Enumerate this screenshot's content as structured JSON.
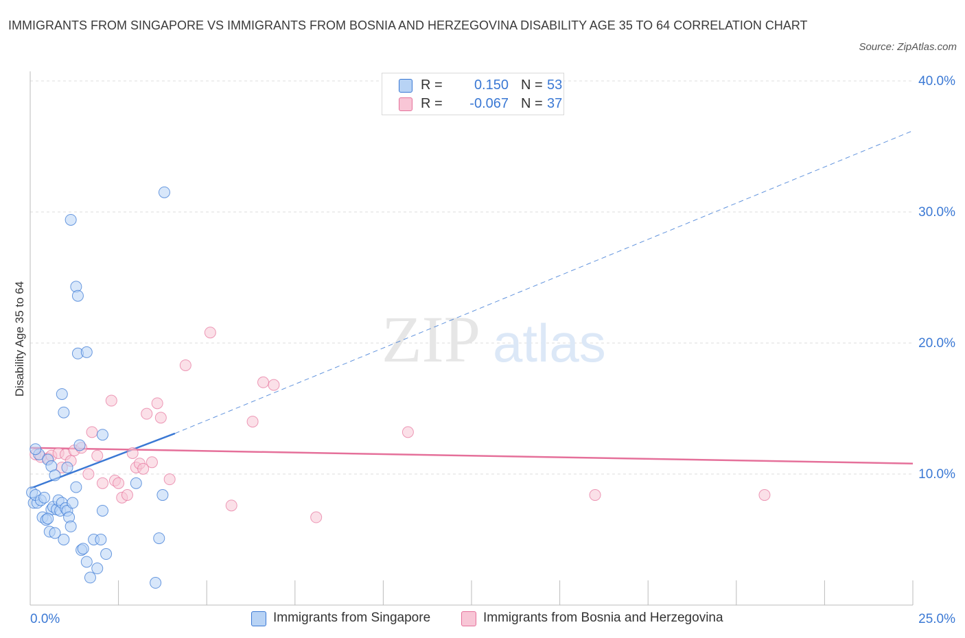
{
  "title": "IMMIGRANTS FROM SINGAPORE VS IMMIGRANTS FROM BOSNIA AND HERZEGOVINA DISABILITY AGE 35 TO 64 CORRELATION CHART",
  "source": "Source: ZipAtlas.com",
  "colors": {
    "blue": "#3a78d4",
    "blue_fill": "#b8d3f5",
    "pink": "#e5709a",
    "pink_fill": "#f8c6d6",
    "grid": "#dddddd",
    "axis_text": "#3a78d4"
  },
  "legend": {
    "r_label": "R =",
    "n_label": "N =",
    "rows": [
      {
        "r": "0.150",
        "n": "53"
      },
      {
        "r": "-0.067",
        "n": "37"
      }
    ]
  },
  "watermark": {
    "zip": "ZIP",
    "atlas": "atlas"
  },
  "chart_data": {
    "type": "scatter",
    "title": "IMMIGRANTS FROM SINGAPORE VS IMMIGRANTS FROM BOSNIA AND HERZEGOVINA DISABILITY AGE 35 TO 64 CORRELATION CHART",
    "xlabel": "",
    "ylabel": "Disability Age 35 to 64",
    "xlim": [
      0,
      25
    ],
    "ylim": [
      0,
      40
    ],
    "x_tick_labels": [
      "0.0%",
      "25.0%"
    ],
    "y_ticks": [
      10,
      20,
      30,
      40
    ],
    "y_tick_labels": [
      "10.0%",
      "20.0%",
      "30.0%",
      "40.0%"
    ],
    "grid": true,
    "series": [
      {
        "name": "Immigrants from Singapore",
        "r": 0.15,
        "n": 53,
        "trend": {
          "x0": 0,
          "y0": 8.9,
          "x1": 4.1,
          "y1": 13.1,
          "extended_to": {
            "x": 25,
            "y": 36.2
          }
        },
        "points": [
          [
            0.05,
            8.6
          ],
          [
            0.1,
            7.8
          ],
          [
            0.2,
            7.8
          ],
          [
            0.15,
            8.4
          ],
          [
            0.3,
            8.0
          ],
          [
            0.35,
            6.7
          ],
          [
            0.45,
            6.5
          ],
          [
            0.55,
            5.6
          ],
          [
            0.6,
            7.3
          ],
          [
            0.65,
            7.5
          ],
          [
            0.7,
            5.5
          ],
          [
            0.75,
            7.3
          ],
          [
            0.8,
            8.0
          ],
          [
            0.85,
            7.2
          ],
          [
            0.9,
            7.8
          ],
          [
            0.95,
            5.0
          ],
          [
            1.0,
            7.4
          ],
          [
            1.05,
            7.2
          ],
          [
            1.1,
            6.7
          ],
          [
            1.15,
            6.0
          ],
          [
            1.2,
            7.8
          ],
          [
            1.3,
            9.0
          ],
          [
            1.4,
            12.2
          ],
          [
            1.45,
            4.2
          ],
          [
            1.5,
            4.3
          ],
          [
            1.6,
            3.3
          ],
          [
            1.7,
            2.1
          ],
          [
            1.8,
            5.0
          ],
          [
            1.9,
            2.8
          ],
          [
            2.0,
            5.0
          ],
          [
            2.05,
            7.2
          ],
          [
            2.15,
            3.9
          ],
          [
            0.25,
            11.5
          ],
          [
            0.5,
            11.1
          ],
          [
            0.6,
            10.6
          ],
          [
            0.7,
            9.9
          ],
          [
            0.9,
            16.1
          ],
          [
            0.95,
            14.7
          ],
          [
            1.05,
            10.5
          ],
          [
            1.35,
            19.2
          ],
          [
            1.3,
            24.3
          ],
          [
            1.35,
            23.6
          ],
          [
            1.6,
            19.3
          ],
          [
            1.15,
            29.4
          ],
          [
            2.05,
            13.0
          ],
          [
            3.0,
            9.3
          ],
          [
            3.75,
            8.4
          ],
          [
            3.55,
            1.7
          ],
          [
            3.65,
            5.1
          ],
          [
            3.8,
            31.5
          ],
          [
            0.15,
            11.9
          ],
          [
            0.4,
            8.2
          ],
          [
            0.5,
            6.6
          ]
        ]
      },
      {
        "name": "Immigrants from Bosnia and Herzegovina",
        "r": -0.067,
        "n": 37,
        "trend": {
          "x0": 0,
          "y0": 12.0,
          "x1": 25,
          "y1": 10.8
        },
        "points": [
          [
            0.15,
            11.5
          ],
          [
            0.3,
            11.3
          ],
          [
            0.5,
            11.2
          ],
          [
            0.6,
            11.4
          ],
          [
            0.8,
            11.6
          ],
          [
            0.9,
            10.5
          ],
          [
            1.0,
            11.5
          ],
          [
            1.15,
            11.0
          ],
          [
            1.25,
            11.8
          ],
          [
            1.45,
            12.0
          ],
          [
            1.65,
            10.0
          ],
          [
            1.75,
            13.2
          ],
          [
            1.9,
            11.4
          ],
          [
            2.05,
            9.3
          ],
          [
            2.3,
            15.6
          ],
          [
            2.4,
            9.5
          ],
          [
            2.5,
            9.3
          ],
          [
            2.6,
            8.2
          ],
          [
            2.75,
            8.4
          ],
          [
            2.9,
            11.6
          ],
          [
            3.0,
            10.5
          ],
          [
            3.1,
            10.8
          ],
          [
            3.2,
            10.4
          ],
          [
            3.3,
            14.6
          ],
          [
            3.45,
            10.9
          ],
          [
            3.6,
            15.4
          ],
          [
            3.7,
            14.3
          ],
          [
            3.95,
            9.6
          ],
          [
            4.4,
            18.3
          ],
          [
            5.1,
            20.8
          ],
          [
            5.7,
            7.6
          ],
          [
            6.3,
            14.0
          ],
          [
            6.6,
            17.0
          ],
          [
            6.9,
            16.8
          ],
          [
            8.1,
            6.7
          ],
          [
            10.7,
            13.2
          ],
          [
            16.0,
            8.4
          ]
        ]
      }
    ],
    "extra_points_bosnia": [
      [
        20.8,
        8.4
      ]
    ]
  },
  "bottom_legend": [
    {
      "label": "Immigrants from Singapore"
    },
    {
      "label": "Immigrants from Bosnia and Herzegovina"
    }
  ]
}
